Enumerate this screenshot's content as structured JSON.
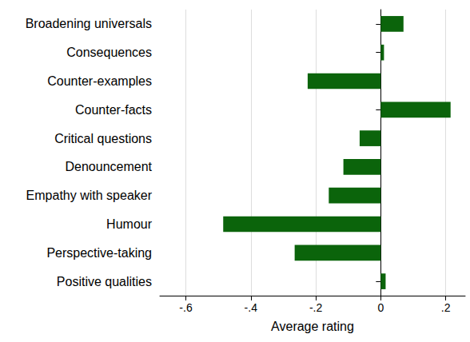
{
  "chart_data": {
    "type": "bar",
    "orientation": "horizontal",
    "x_label": "Average rating",
    "categories": [
      "Broadening universals",
      "Consequences",
      "Counter-examples",
      "Counter-facts",
      "Critical questions",
      "Denouncement",
      "Empathy with speaker",
      "Humour",
      "Perspective-taking",
      "Positive qualities"
    ],
    "values": [
      0.07,
      0.01,
      -0.225,
      0.215,
      -0.065,
      -0.115,
      -0.16,
      -0.485,
      -0.265,
      0.015
    ],
    "color": "#0b640b",
    "xlim": [
      -0.68,
      0.26
    ],
    "xticks": [
      {
        "value": -0.6,
        "label": "-.6"
      },
      {
        "value": -0.4,
        "label": "-.4"
      },
      {
        "value": -0.2,
        "label": "-.2"
      },
      0,
      {
        "value": 0.2,
        "label": ".2"
      }
    ],
    "grid": true
  }
}
